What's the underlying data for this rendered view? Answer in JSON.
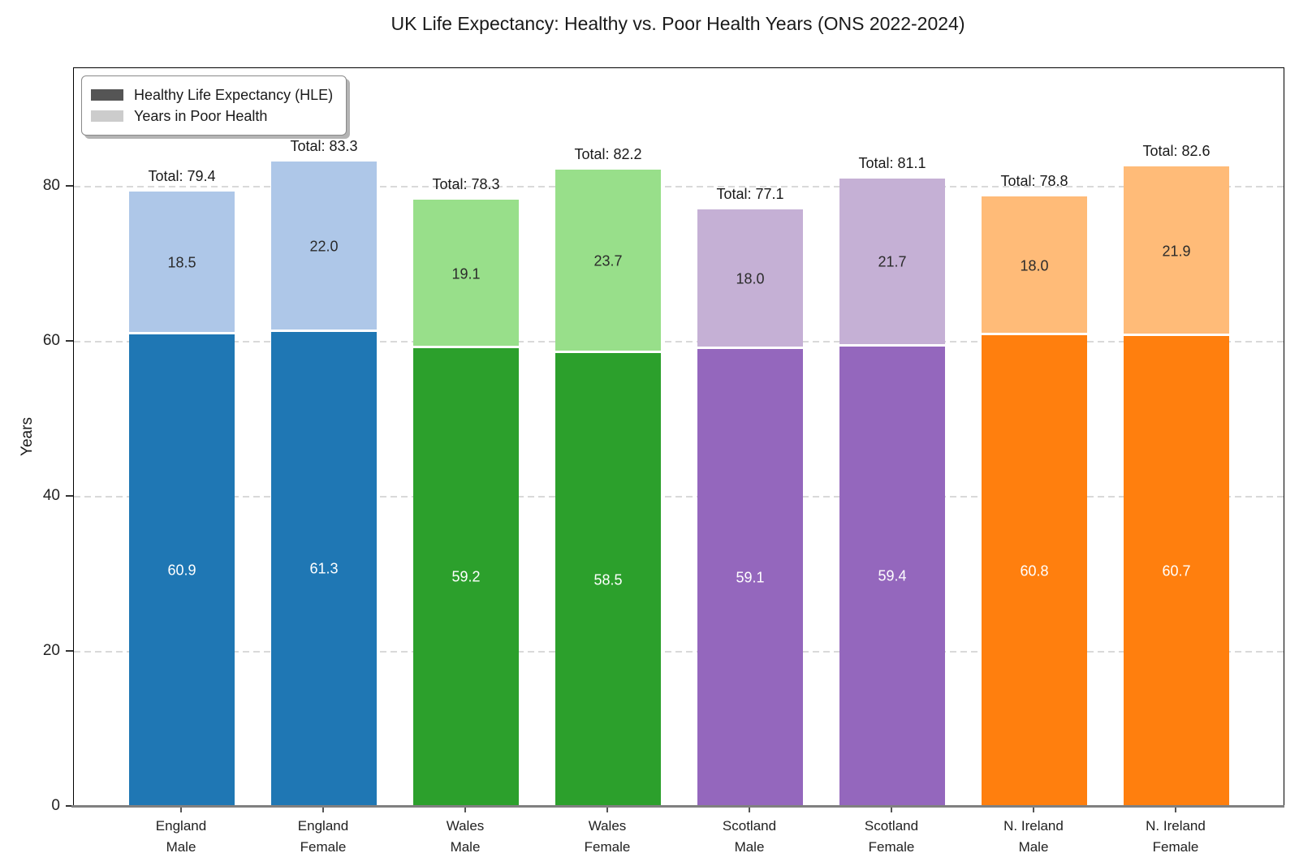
{
  "title": "UK Life Expectancy: Healthy vs. Poor Health Years (ONS 2022-2024)",
  "ylabel": "Years",
  "legend": {
    "items": [
      {
        "label": "Healthy Life Expectancy (HLE)",
        "swatch": "#555555"
      },
      {
        "label": "Years in Poor Health",
        "swatch": "#cccccc"
      }
    ]
  },
  "chart_data": {
    "type": "bar",
    "stacked": true,
    "title": "UK Life Expectancy: Healthy vs. Poor Health Years (ONS 2022-2024)",
    "xlabel": "",
    "ylabel": "Years",
    "ylim": [
      0,
      95.3
    ],
    "yticks": [
      0,
      20,
      40,
      60,
      80
    ],
    "grid": "horizontal dashed",
    "legend_position": "upper left",
    "categories": [
      {
        "line1": "England",
        "line2": "Male"
      },
      {
        "line1": "England",
        "line2": "Female"
      },
      {
        "line1": "Wales",
        "line2": "Male"
      },
      {
        "line1": "Wales",
        "line2": "Female"
      },
      {
        "line1": "Scotland",
        "line2": "Male"
      },
      {
        "line1": "Scotland",
        "line2": "Female"
      },
      {
        "line1": "N. Ireland",
        "line2": "Male"
      },
      {
        "line1": "N. Ireland",
        "line2": "Female"
      }
    ],
    "series": [
      {
        "name": "Healthy Life Expectancy (HLE)",
        "values": [
          60.9,
          61.3,
          59.2,
          58.5,
          59.1,
          59.4,
          60.8,
          60.7
        ],
        "label_color": "#ffffff"
      },
      {
        "name": "Years in Poor Health",
        "values": [
          18.5,
          22.0,
          19.1,
          23.7,
          18.0,
          21.7,
          18.0,
          21.9
        ],
        "label_color": "#2b2b2b"
      }
    ],
    "totals": [
      79.4,
      83.3,
      78.3,
      82.2,
      77.1,
      81.1,
      78.8,
      82.6
    ],
    "total_prefix": "Total: ",
    "colors": [
      {
        "hle": "#1f77b4",
        "poor": "#aec7e8"
      },
      {
        "hle": "#1f77b4",
        "poor": "#aec7e8"
      },
      {
        "hle": "#2ca02c",
        "poor": "#98df8a"
      },
      {
        "hle": "#2ca02c",
        "poor": "#98df8a"
      },
      {
        "hle": "#9467bd",
        "poor": "#c5b0d5"
      },
      {
        "hle": "#9467bd",
        "poor": "#c5b0d5"
      },
      {
        "hle": "#ff7f0e",
        "poor": "#ffbb78"
      },
      {
        "hle": "#ff7f0e",
        "poor": "#ffbb78"
      }
    ]
  }
}
